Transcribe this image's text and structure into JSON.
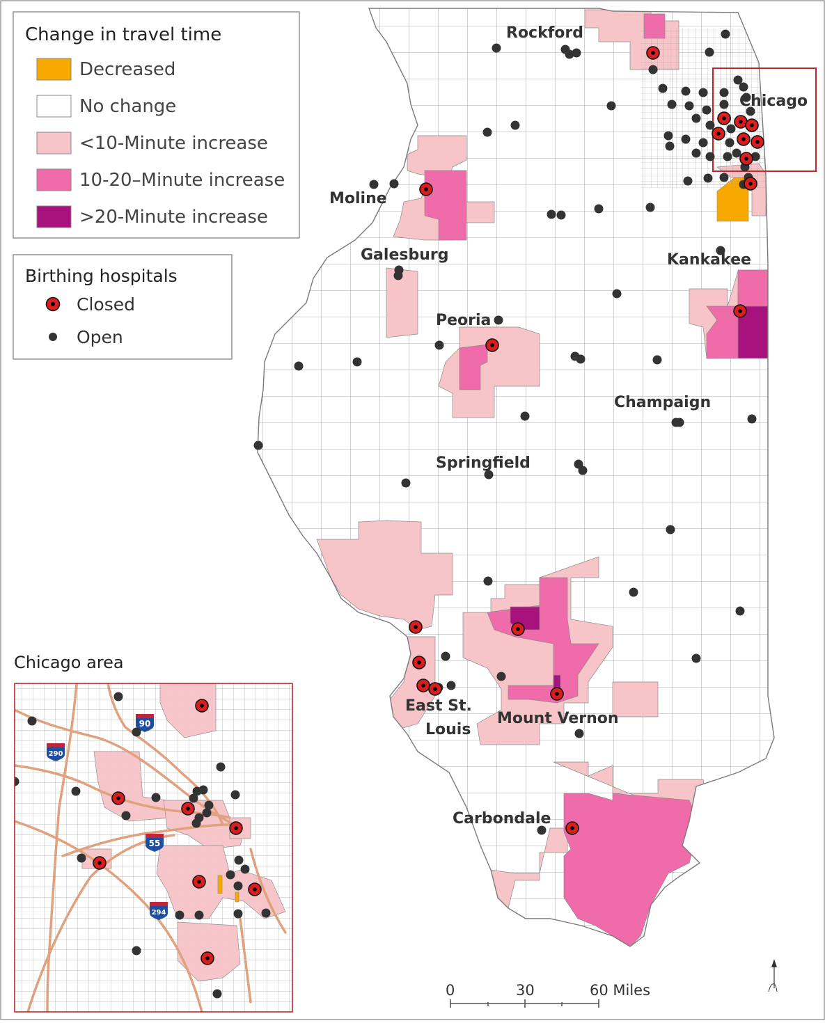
{
  "colors": {
    "decreased": "#F7A900",
    "no_change": "#FFFFFF",
    "increase_lt10": "#F7C4C8",
    "increase_10_20": "#F06BAA",
    "increase_gt20": "#A8127C",
    "county_border": "#8A8A8A",
    "highway": "#E2A07E",
    "interstate_blue": "#1F4E9E",
    "interstate_red": "#C4243A",
    "closed_marker": "#D81E1E",
    "open_marker": "#333333"
  },
  "legend_travel": {
    "title": "Change in travel time",
    "items": [
      {
        "key": "decreased",
        "label": "Decreased"
      },
      {
        "key": "no_change",
        "label": "No change"
      },
      {
        "key": "increase_lt10",
        "label": "<10-Minute increase"
      },
      {
        "key": "increase_10_20",
        "label": "10-20–Minute increase"
      },
      {
        "key": "increase_gt20",
        "label": ">20-Minute increase"
      }
    ]
  },
  "legend_hospitals": {
    "title": "Birthing hospitals",
    "closed": "Closed",
    "open": "Open"
  },
  "cities": {
    "rockford": "Rockford",
    "chicago": "Chicago",
    "moline": "Moline",
    "galesburg": "Galesburg",
    "kankakee": "Kankakee",
    "peoria": "Peoria",
    "champaign": "Champaign",
    "springfield": "Springfield",
    "east_st_louis_1": "East St.",
    "east_st_louis_2": "Louis",
    "mount_vernon": "Mount Vernon",
    "carbondale": "Carbondale"
  },
  "inset": {
    "title": "Chicago area",
    "interstates": [
      "90",
      "290",
      "55",
      "294"
    ]
  },
  "scale_bar": {
    "ticks": [
      "0",
      "30",
      "60 Miles"
    ]
  },
  "north_arrow": "north-arrow-icon"
}
